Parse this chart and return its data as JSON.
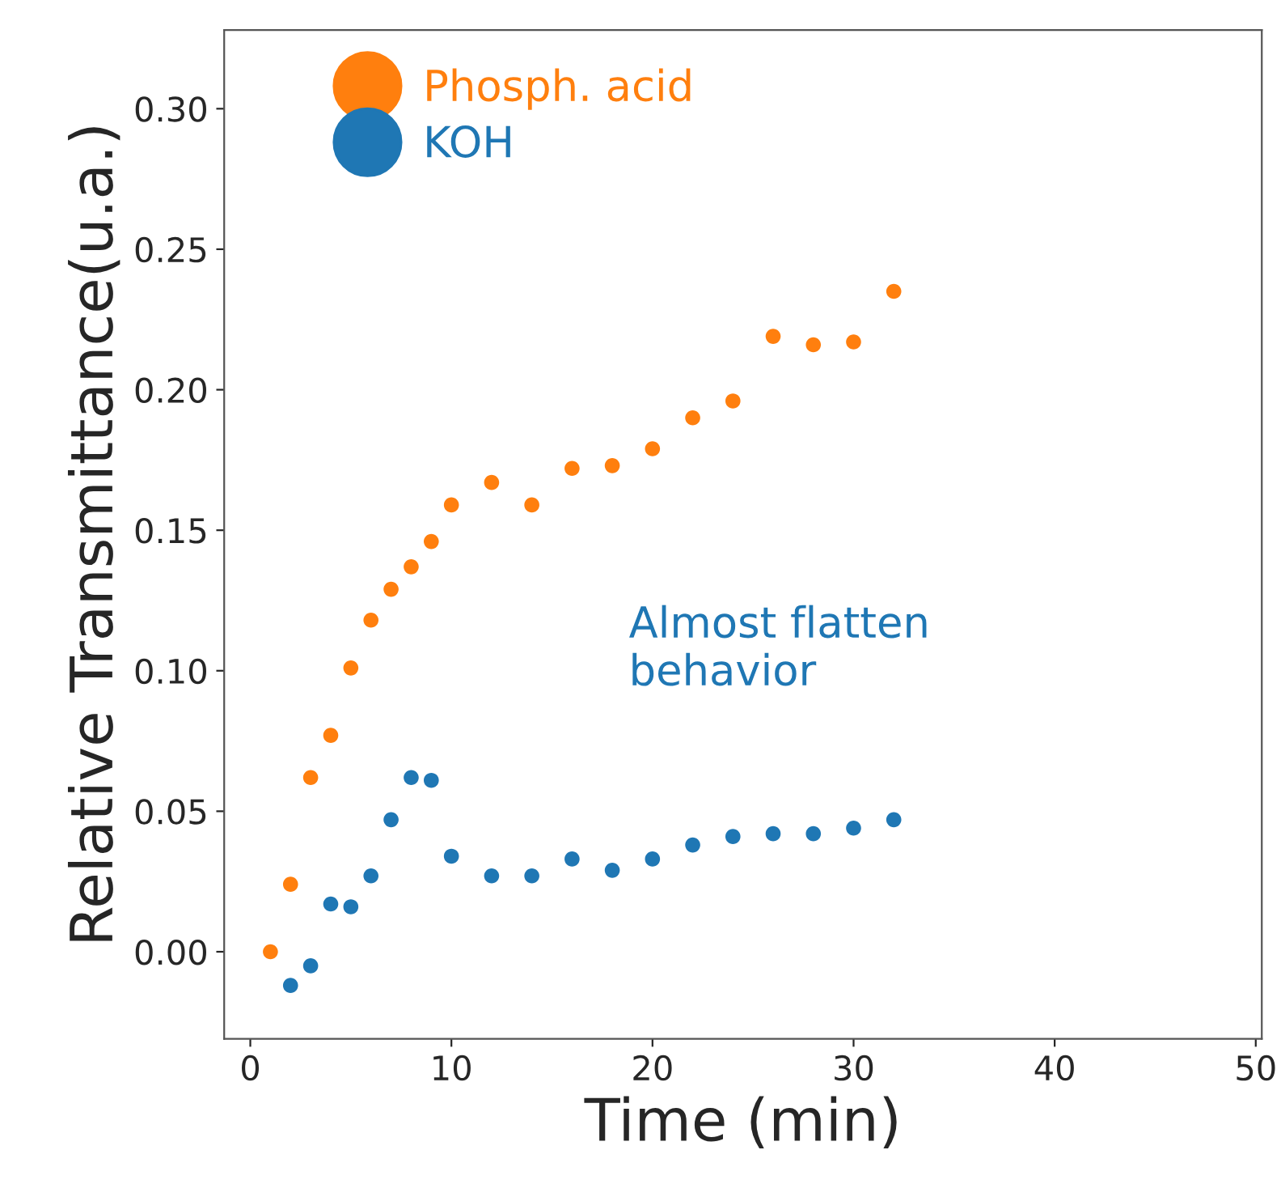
{
  "chart_data": {
    "type": "scatter",
    "xlabel": "Time (min)",
    "ylabel": "Relative Transmittance(u.a.)",
    "xlim": [
      -1.3,
      50.3
    ],
    "ylim": [
      -0.031,
      0.328
    ],
    "xticks": [
      0,
      10,
      20,
      30,
      40,
      50
    ],
    "yticks": [
      {
        "value": 0,
        "label": "0.00"
      },
      {
        "value": 0.05,
        "label": "0.05"
      },
      {
        "value": 0.1,
        "label": "0.10"
      },
      {
        "value": 0.15,
        "label": "0.15"
      },
      {
        "value": 0.2,
        "label": "0.20"
      },
      {
        "value": 0.25,
        "label": "0.25"
      },
      {
        "value": 0.3,
        "label": "0.30"
      }
    ],
    "grid": false,
    "legend": "top left",
    "marker": "circle",
    "annotations": [
      "Almost flatten\nbehavior"
    ],
    "series": [
      {
        "name": "Phosph. acid",
        "color": "#ff7f0e",
        "x": [
          1,
          2,
          3,
          4,
          5,
          6,
          7,
          8,
          9,
          10,
          12,
          14,
          16,
          18,
          20,
          22,
          24,
          26,
          28,
          30,
          32
        ],
        "values": [
          0.0,
          0.024,
          0.062,
          0.077,
          0.101,
          0.118,
          0.129,
          0.137,
          0.146,
          0.159,
          0.167,
          0.159,
          0.172,
          0.173,
          0.179,
          0.19,
          0.196,
          0.219,
          0.216,
          0.217,
          0.235
        ]
      },
      {
        "name": "KOH",
        "color": "#1f77b4",
        "x": [
          2,
          3,
          4,
          5,
          6,
          7,
          8,
          9,
          10,
          12,
          14,
          16,
          18,
          20,
          22,
          24,
          26,
          28,
          30,
          32
        ],
        "values": [
          -0.012,
          -0.005,
          0.017,
          0.016,
          0.027,
          0.047,
          0.062,
          0.061,
          0.034,
          0.027,
          0.027,
          0.033,
          0.029,
          0.033,
          0.038,
          0.041,
          0.042,
          0.042,
          0.044,
          0.047
        ]
      }
    ]
  }
}
